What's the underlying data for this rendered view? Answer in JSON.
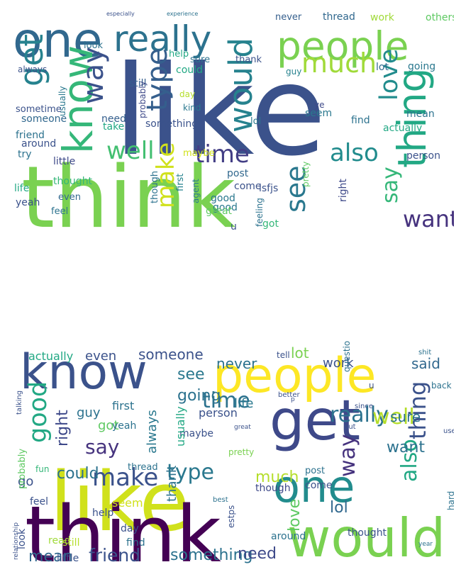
{
  "clouds": [
    {
      "words": [
        {
          "text": "like",
          "color": "#3b528b",
          "vertical": false
        },
        {
          "text": "think",
          "color": "#7ad151",
          "vertical": false
        },
        {
          "text": "one",
          "color": "#31688e",
          "vertical": false
        },
        {
          "text": "really",
          "color": "#2c728e",
          "vertical": false
        },
        {
          "text": "people",
          "color": "#7ad151",
          "vertical": false
        },
        {
          "text": "know",
          "color": "#35b779",
          "vertical": true
        },
        {
          "text": "get",
          "color": "#26828e",
          "vertical": true
        },
        {
          "text": "way",
          "color": "#3b528b",
          "vertical": true
        },
        {
          "text": "thing",
          "color": "#22a884",
          "vertical": true
        },
        {
          "text": "would",
          "color": "#26828e",
          "vertical": true
        },
        {
          "text": "much",
          "color": "#a0da39",
          "vertical": false
        },
        {
          "text": "love",
          "color": "#228c8d",
          "vertical": true
        },
        {
          "text": "type",
          "color": "#355f8d",
          "vertical": true
        },
        {
          "text": "well",
          "color": "#43bf71",
          "vertical": false
        },
        {
          "text": "time",
          "color": "#433e85",
          "vertical": false
        },
        {
          "text": "also",
          "color": "#228c8d",
          "vertical": false
        },
        {
          "text": "make",
          "color": "#d0e11c",
          "vertical": true
        },
        {
          "text": "see",
          "color": "#2a788e",
          "vertical": true
        },
        {
          "text": "say",
          "color": "#35b779",
          "vertical": true
        },
        {
          "text": "want",
          "color": "#46337e",
          "vertical": false
        },
        {
          "text": "good",
          "color": "#2a788e",
          "vertical": false
        },
        {
          "text": "still",
          "color": "#355f8d",
          "vertical": false
        },
        {
          "text": "help",
          "color": "#22a884",
          "vertical": false
        },
        {
          "text": "sure",
          "color": "#2c728e",
          "vertical": false
        },
        {
          "text": "thank",
          "color": "#3b528b",
          "vertical": false
        },
        {
          "text": "lol",
          "color": "#2a788e",
          "vertical": false
        },
        {
          "text": "never",
          "color": "#355f8d",
          "vertical": false
        },
        {
          "text": "thread",
          "color": "#31688e",
          "vertical": false
        },
        {
          "text": "work",
          "color": "#a0da39",
          "vertical": false
        },
        {
          "text": "others",
          "color": "#5ec962",
          "vertical": false
        },
        {
          "text": "always",
          "color": "#3b528b",
          "vertical": false
        },
        {
          "text": "look",
          "color": "#2c728e",
          "vertical": false
        },
        {
          "text": "could",
          "color": "#22a884",
          "vertical": false
        },
        {
          "text": "kind",
          "color": "#2a788e",
          "vertical": false
        },
        {
          "text": "day",
          "color": "#b5de2b",
          "vertical": false
        },
        {
          "text": "guy",
          "color": "#26828e",
          "vertical": false
        },
        {
          "text": "lot",
          "color": "#31688e",
          "vertical": false
        },
        {
          "text": "going",
          "color": "#2a788e",
          "vertical": false
        },
        {
          "text": "mean",
          "color": "#2c728e",
          "vertical": false
        },
        {
          "text": "seem",
          "color": "#2a788e",
          "vertical": false
        },
        {
          "text": "ye",
          "color": "#3e4989",
          "vertical": false
        },
        {
          "text": "find",
          "color": "#2c728e",
          "vertical": false
        },
        {
          "text": "actually",
          "color": "#22a884",
          "vertical": false
        },
        {
          "text": "person",
          "color": "#3b528b",
          "vertical": false
        },
        {
          "text": "definitely",
          "color": "#2c728e",
          "vertical": true
        },
        {
          "text": "something",
          "color": "#3b528b",
          "vertical": false
        },
        {
          "text": "need",
          "color": "#355f8d",
          "vertical": false
        },
        {
          "text": "take",
          "color": "#22a884",
          "vertical": false
        },
        {
          "text": "probably",
          "color": "#3e4989",
          "vertical": true
        },
        {
          "text": "usually",
          "color": "#2a788e",
          "vertical": true
        },
        {
          "text": "sometime",
          "color": "#3b528b",
          "vertical": false
        },
        {
          "text": "someone",
          "color": "#31688e",
          "vertical": false
        },
        {
          "text": "friend",
          "color": "#2c728e",
          "vertical": false
        },
        {
          "text": "around",
          "color": "#3b528b",
          "vertical": false
        },
        {
          "text": "try",
          "color": "#2c728e",
          "vertical": false
        },
        {
          "text": "little",
          "color": "#3e4989",
          "vertical": false
        },
        {
          "text": "life",
          "color": "#22a884",
          "vertical": false
        },
        {
          "text": "yeah",
          "color": "#3b528b",
          "vertical": false
        },
        {
          "text": "feel",
          "color": "#2c728e",
          "vertical": false
        },
        {
          "text": "thought",
          "color": "#35b779",
          "vertical": false
        },
        {
          "text": "even",
          "color": "#31688e",
          "vertical": false
        },
        {
          "text": "maybe",
          "color": "#d0e11c",
          "vertical": false
        },
        {
          "text": "first",
          "color": "#26828e",
          "vertical": true
        },
        {
          "text": "agent",
          "color": "#2a788e",
          "vertical": true
        },
        {
          "text": "though",
          "color": "#2c728e",
          "vertical": true
        },
        {
          "text": "post",
          "color": "#31688e",
          "vertical": false
        },
        {
          "text": "come",
          "color": "#3b528b",
          "vertical": false
        },
        {
          "text": "isfjs",
          "color": "#3b528b",
          "vertical": false
        },
        {
          "text": "good",
          "color": "#2a788e",
          "vertical": false
        },
        {
          "text": "great",
          "color": "#5ec962",
          "vertical": false
        },
        {
          "text": "feeling",
          "color": "#2c728e",
          "vertical": true
        },
        {
          "text": "got",
          "color": "#35b779",
          "vertical": false
        },
        {
          "text": "right",
          "color": "#3e4989",
          "vertical": true
        },
        {
          "text": "u",
          "color": "#3b528b",
          "vertical": false
        },
        {
          "text": "pretty",
          "color": "#5ec962",
          "vertical": true
        },
        {
          "text": "especially",
          "color": "#3b528b",
          "vertical": false
        },
        {
          "text": "experience",
          "color": "#2c728e",
          "vertical": false
        }
      ]
    },
    {
      "words": [
        {
          "text": "like",
          "color": "#d0e11c",
          "vertical": false
        },
        {
          "text": "think",
          "color": "#440154",
          "vertical": false
        },
        {
          "text": "people",
          "color": "#fde725",
          "vertical": false
        },
        {
          "text": "know",
          "color": "#3b528b",
          "vertical": false
        },
        {
          "text": "get",
          "color": "#3e4989",
          "vertical": false
        },
        {
          "text": "one",
          "color": "#228c8d",
          "vertical": false
        },
        {
          "text": "would",
          "color": "#7ad151",
          "vertical": false
        },
        {
          "text": "really",
          "color": "#2c728e",
          "vertical": false
        },
        {
          "text": "well",
          "color": "#b5de2b",
          "vertical": false
        },
        {
          "text": "time",
          "color": "#2c728e",
          "vertical": false
        },
        {
          "text": "say",
          "color": "#46337e",
          "vertical": false
        },
        {
          "text": "good",
          "color": "#22a884",
          "vertical": true
        },
        {
          "text": "right",
          "color": "#3e4989",
          "vertical": true
        },
        {
          "text": "thing",
          "color": "#3b528b",
          "vertical": true
        },
        {
          "text": "also",
          "color": "#22a884",
          "vertical": true
        },
        {
          "text": "way",
          "color": "#46337e",
          "vertical": true
        },
        {
          "text": "want",
          "color": "#2c728e",
          "vertical": false
        },
        {
          "text": "type",
          "color": "#2a788e",
          "vertical": false
        },
        {
          "text": "make",
          "color": "#3b528b",
          "vertical": false
        },
        {
          "text": "could",
          "color": "#2c728e",
          "vertical": false
        },
        {
          "text": "much",
          "color": "#b5de2b",
          "vertical": false
        },
        {
          "text": "friend",
          "color": "#3b528b",
          "vertical": false
        },
        {
          "text": "something",
          "color": "#2c728e",
          "vertical": false
        },
        {
          "text": "need",
          "color": "#3e4989",
          "vertical": false
        },
        {
          "text": "mean",
          "color": "#31688e",
          "vertical": false
        },
        {
          "text": "lol",
          "color": "#31688e",
          "vertical": false
        },
        {
          "text": "love",
          "color": "#5ec962",
          "vertical": true
        },
        {
          "text": "see",
          "color": "#2a788e",
          "vertical": false
        },
        {
          "text": "going",
          "color": "#2c728e",
          "vertical": false
        },
        {
          "text": "guy",
          "color": "#2c728e",
          "vertical": false
        },
        {
          "text": "got",
          "color": "#5ec962",
          "vertical": false
        },
        {
          "text": "life",
          "color": "#2a788e",
          "vertical": false
        },
        {
          "text": "sure",
          "color": "#2c728e",
          "vertical": false
        },
        {
          "text": "lot",
          "color": "#7ad151",
          "vertical": false
        },
        {
          "text": "work",
          "color": "#3b528b",
          "vertical": false
        },
        {
          "text": "said",
          "color": "#31688e",
          "vertical": false
        },
        {
          "text": "even",
          "color": "#3b528b",
          "vertical": false
        },
        {
          "text": "someone",
          "color": "#3b528b",
          "vertical": false
        },
        {
          "text": "never",
          "color": "#2c728e",
          "vertical": false
        },
        {
          "text": "actually",
          "color": "#22a884",
          "vertical": false
        },
        {
          "text": "tell",
          "color": "#3b528b",
          "vertical": false
        },
        {
          "text": "first",
          "color": "#2c728e",
          "vertical": false
        },
        {
          "text": "maybe",
          "color": "#3b528b",
          "vertical": false
        },
        {
          "text": "person",
          "color": "#3b528b",
          "vertical": false
        },
        {
          "text": "thank",
          "color": "#2c728e",
          "vertical": true
        },
        {
          "text": "always",
          "color": "#2a788e",
          "vertical": true
        },
        {
          "text": "usually",
          "color": "#22a884",
          "vertical": true
        },
        {
          "text": "yeah",
          "color": "#2c728e",
          "vertical": false
        },
        {
          "text": "pretty",
          "color": "#7ad151",
          "vertical": false
        },
        {
          "text": "seem",
          "color": "#d0e11c",
          "vertical": false
        },
        {
          "text": "thread",
          "color": "#2c728e",
          "vertical": false
        },
        {
          "text": "feel",
          "color": "#3b528b",
          "vertical": false
        },
        {
          "text": "look",
          "color": "#3b528b",
          "vertical": true
        },
        {
          "text": "find",
          "color": "#2c728e",
          "vertical": false
        },
        {
          "text": "day",
          "color": "#3b528b",
          "vertical": false
        },
        {
          "text": "read",
          "color": "#a0da39",
          "vertical": false
        },
        {
          "text": "still",
          "color": "#b5de2b",
          "vertical": false
        },
        {
          "text": "help",
          "color": "#3b528b",
          "vertical": false
        },
        {
          "text": "post",
          "color": "#2c728e",
          "vertical": false
        },
        {
          "text": "come",
          "color": "#3b528b",
          "vertical": false
        },
        {
          "text": "though",
          "color": "#3e4989",
          "vertical": false
        },
        {
          "text": "around",
          "color": "#2c728e",
          "vertical": false
        },
        {
          "text": "thought",
          "color": "#3b528b",
          "vertical": false
        },
        {
          "text": "go",
          "color": "#3b528b",
          "vertical": false
        },
        {
          "text": "probably",
          "color": "#5ec962",
          "vertical": true
        },
        {
          "text": "fun",
          "color": "#35b779",
          "vertical": false
        },
        {
          "text": "little",
          "color": "#3b528b",
          "vertical": false
        },
        {
          "text": "better",
          "color": "#3b528b",
          "vertical": false
        },
        {
          "text": "since",
          "color": "#3b528b",
          "vertical": false
        },
        {
          "text": "back",
          "color": "#2c728e",
          "vertical": false
        },
        {
          "text": "question",
          "color": "#2c728e",
          "vertical": true
        },
        {
          "text": "estps",
          "color": "#3b528b",
          "vertical": true
        },
        {
          "text": "talking",
          "color": "#3b528b",
          "vertical": true
        },
        {
          "text": "relationship",
          "color": "#3b528b",
          "vertical": true
        },
        {
          "text": "year",
          "color": "#2c728e",
          "vertical": false
        },
        {
          "text": "hard",
          "color": "#2c728e",
          "vertical": true
        },
        {
          "text": "best",
          "color": "#2c728e",
          "vertical": false
        },
        {
          "text": "put",
          "color": "#3b528b",
          "vertical": false
        },
        {
          "text": "use",
          "color": "#3b528b",
          "vertical": false
        },
        {
          "text": "shit",
          "color": "#2c728e",
          "vertical": false
        },
        {
          "text": "great",
          "color": "#3b528b",
          "vertical": false
        },
        {
          "text": "u",
          "color": "#3b528b",
          "vertical": false
        },
        {
          "text": "p",
          "color": "#3b528b",
          "vertical": false
        }
      ]
    }
  ]
}
